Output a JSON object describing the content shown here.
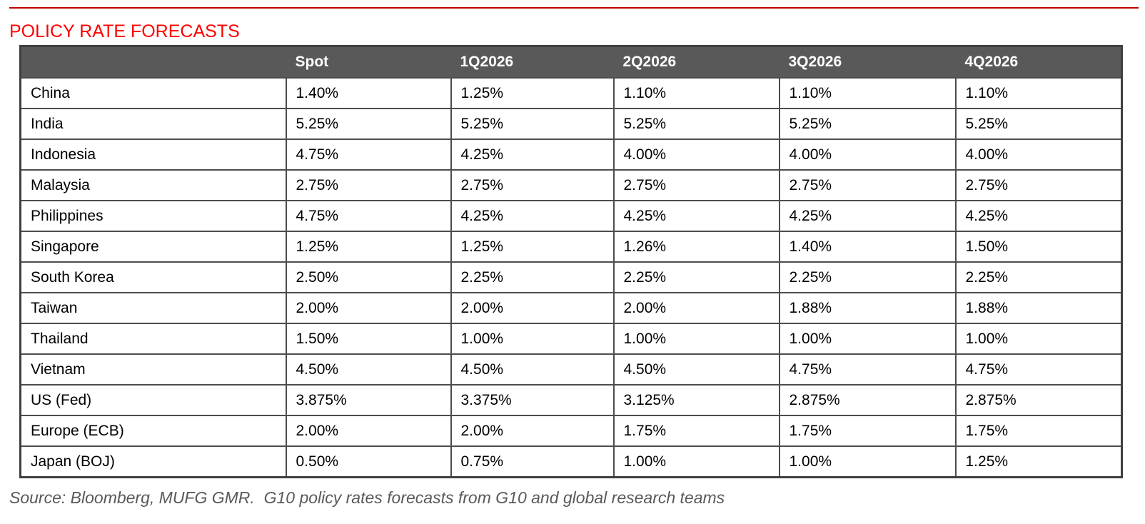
{
  "title": "POLICY RATE FORECASTS",
  "source_note": "Source: Bloomberg, MUFG GMR.  G10 policy rates forecasts from G10 and global research teams",
  "colors": {
    "title_red": "#FE0000",
    "rule_red": "#C00000",
    "header_bg": "#595959",
    "header_text": "#FFFFFF",
    "border": "#4D4D4D",
    "source_gray": "#595959"
  },
  "chart_data": {
    "type": "table",
    "title": "POLICY RATE FORECASTS",
    "columns": [
      "",
      "Spot",
      "1Q2026",
      "2Q2026",
      "3Q2026",
      "4Q2026"
    ],
    "rows": [
      {
        "label": "China",
        "values": [
          "1.40%",
          "1.25%",
          "1.10%",
          "1.10%",
          "1.10%"
        ]
      },
      {
        "label": "India",
        "values": [
          "5.25%",
          "5.25%",
          "5.25%",
          "5.25%",
          "5.25%"
        ]
      },
      {
        "label": "Indonesia",
        "values": [
          "4.75%",
          "4.25%",
          "4.00%",
          "4.00%",
          "4.00%"
        ]
      },
      {
        "label": "Malaysia",
        "values": [
          "2.75%",
          "2.75%",
          "2.75%",
          "2.75%",
          "2.75%"
        ]
      },
      {
        "label": "Philippines",
        "values": [
          "4.75%",
          "4.25%",
          "4.25%",
          "4.25%",
          "4.25%"
        ]
      },
      {
        "label": "Singapore",
        "values": [
          "1.25%",
          "1.25%",
          "1.26%",
          "1.40%",
          "1.50%"
        ]
      },
      {
        "label": "South Korea",
        "values": [
          "2.50%",
          "2.25%",
          "2.25%",
          "2.25%",
          "2.25%"
        ]
      },
      {
        "label": "Taiwan",
        "values": [
          "2.00%",
          "2.00%",
          "2.00%",
          "1.88%",
          "1.88%"
        ]
      },
      {
        "label": "Thailand",
        "values": [
          "1.50%",
          "1.00%",
          "1.00%",
          "1.00%",
          "1.00%"
        ]
      },
      {
        "label": "Vietnam",
        "values": [
          "4.50%",
          "4.50%",
          "4.50%",
          "4.75%",
          "4.75%"
        ]
      },
      {
        "label": "US (Fed)",
        "values": [
          "3.875%",
          "3.375%",
          "3.125%",
          "2.875%",
          "2.875%"
        ]
      },
      {
        "label": "Europe (ECB)",
        "values": [
          "2.00%",
          "2.00%",
          "1.75%",
          "1.75%",
          "1.75%"
        ]
      },
      {
        "label": "Japan (BOJ)",
        "values": [
          "0.50%",
          "0.75%",
          "1.00%",
          "1.00%",
          "1.25%"
        ]
      }
    ],
    "source": "Source: Bloomberg, MUFG GMR.  G10 policy rates forecasts from G10 and global research teams"
  }
}
